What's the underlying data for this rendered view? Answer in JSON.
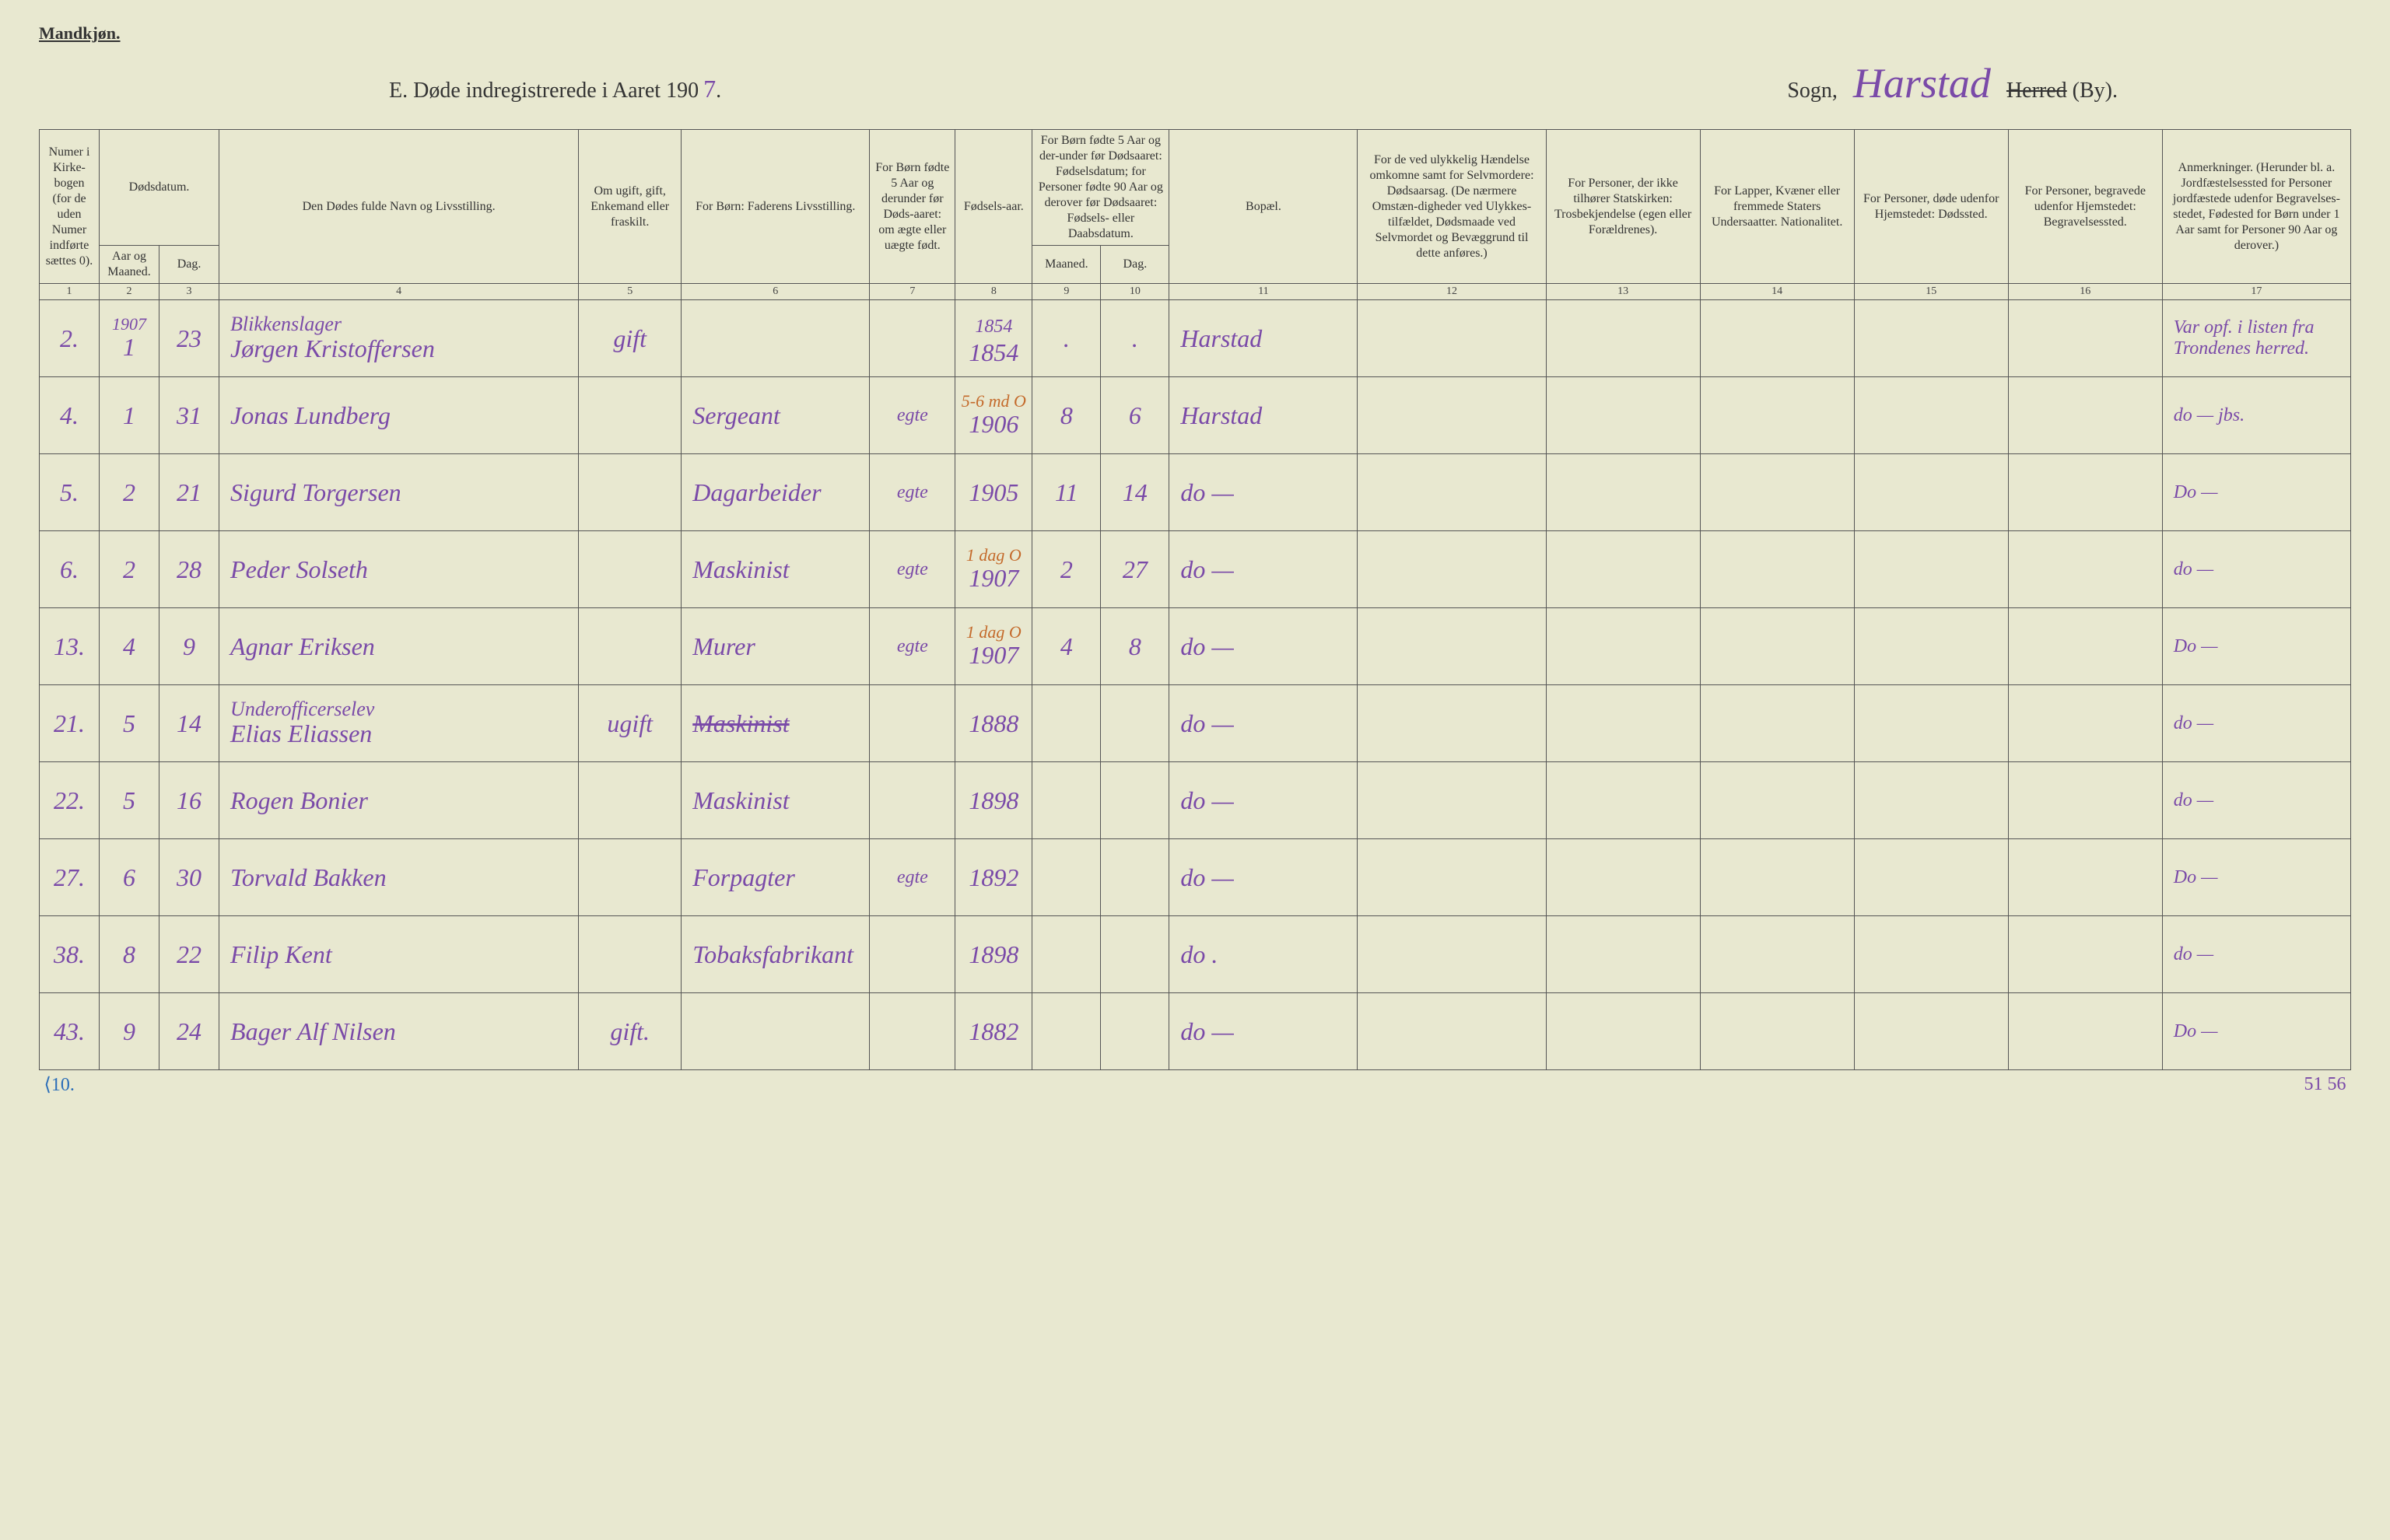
{
  "header": {
    "gender_label": "Mandkjøn.",
    "title_prefix": "E.  Døde indregistrerede i Aaret 190",
    "year_suffix": "7",
    "title_period": ".",
    "sogn_label": "Sogn,",
    "sogn_name": "Harstad",
    "herred_strike": "Herred",
    "by_suffix": "(By)."
  },
  "columns": {
    "c1": "Numer i Kirke-bogen (for de uden Numer indførte sættes 0).",
    "c23_top": "Dødsdatum.",
    "c2": "Aar og Maaned.",
    "c3": "Dag.",
    "c4": "Den Dødes fulde Navn og Livsstilling.",
    "c5": "Om ugift, gift, Enkemand eller fraskilt.",
    "c6": "For Børn: Faderens Livsstilling.",
    "c7": "For Børn fødte 5 Aar og derunder før Døds-aaret: om ægte eller uægte født.",
    "c8": "Fødsels-aar.",
    "c910_top": "For Børn fødte 5 Aar og der-under før Dødsaaret: Fødselsdatum; for Personer fødte 90 Aar og derover før Dødsaaret: Fødsels- eller Daabsdatum.",
    "c9": "Maaned.",
    "c10": "Dag.",
    "c11": "Bopæl.",
    "c12": "For de ved ulykkelig Hændelse omkomne samt for Selvmordere: Dødsaarsag. (De nærmere Omstæn-digheder ved Ulykkes-tilfældet, Dødsmaade ved Selvmordet og Bevæggrund til dette anføres.)",
    "c13": "For Personer, der ikke tilhører Statskirken: Trosbekjendelse (egen eller Forældrenes).",
    "c14": "For Lapper, Kvæner eller fremmede Staters Undersaatter. Nationalitet.",
    "c15": "For Personer, døde udenfor Hjemstedet: Dødssted.",
    "c16": "For Personer, begravede udenfor Hjemstedet: Begravelsessted.",
    "c17": "Anmerkninger. (Herunder bl. a. Jordfæstelsessted for Personer jordfæstede udenfor Begravelses-stedet, Fødested for Børn under 1 Aar samt for Personer 90 Aar og derover.)",
    "nums": [
      "1",
      "2",
      "3",
      "4",
      "5",
      "6",
      "7",
      "8",
      "9",
      "10",
      "11",
      "12",
      "13",
      "14",
      "15",
      "16",
      "17"
    ]
  },
  "rows": [
    {
      "num": "2.",
      "year_top": "1907",
      "mon": "1",
      "day": "23",
      "name_top": "Blikkenslager",
      "name": "Jørgen Kristoffersen",
      "civ": "gift",
      "father": "",
      "egte": "",
      "birthyear_extra": "1854",
      "birthyear": "1854",
      "bm": ".",
      "bd": ".",
      "bopael": "Harstad",
      "remarks": "Var opf. i listen fra Trondenes herred."
    },
    {
      "num": "4.",
      "mon": "1",
      "day": "31",
      "name": "Jonas Lundberg",
      "civ": "",
      "father": "Sergeant",
      "egte": "egte",
      "birthyear": "1906",
      "bm": "8",
      "bd": "6",
      "annot": "5-6 md   O",
      "bopael": "Harstad",
      "remarks": "do — jbs."
    },
    {
      "num": "5.",
      "mon": "2",
      "day": "21",
      "name": "Sigurd Torgersen",
      "civ": "",
      "father": "Dagarbeider",
      "egte": "egte",
      "birthyear": "1905",
      "bm": "11",
      "bd": "14",
      "bopael": "do —",
      "remarks": "Do —"
    },
    {
      "num": "6.",
      "mon": "2",
      "day": "28",
      "name": "Peder Solseth",
      "civ": "",
      "father": "Maskinist",
      "egte": "egte",
      "birthyear": "1907",
      "bm": "2",
      "bd": "27",
      "annot": "1 dag  O",
      "bopael": "do —",
      "remarks": "do —"
    },
    {
      "num": "13.",
      "mon": "4",
      "day": "9",
      "name": "Agnar Eriksen",
      "civ": "",
      "father": "Murer",
      "egte": "egte",
      "birthyear": "1907",
      "bm": "4",
      "bd": "8",
      "annot": "1 dag  O",
      "bopael": "do —",
      "remarks": "Do —"
    },
    {
      "num": "21.",
      "mon": "5",
      "day": "14",
      "name_top": "Underofficerselev",
      "name": "Elias Eliassen",
      "civ": "ugift",
      "father": "Maskinist",
      "father_strike": true,
      "egte": "",
      "birthyear": "1888",
      "bm": "",
      "bd": "",
      "bopael": "do —",
      "remarks": "do —"
    },
    {
      "num": "22.",
      "mon": "5",
      "day": "16",
      "name": "Rogen Bonier",
      "civ": "",
      "father": "Maskinist",
      "egte": "",
      "birthyear": "1898",
      "bm": "",
      "bd": "",
      "bopael": "do —",
      "remarks": "do —"
    },
    {
      "num": "27.",
      "mon": "6",
      "day": "30",
      "name": "Torvald Bakken",
      "civ": "",
      "father": "Forpagter",
      "egte": "egte",
      "birthyear": "1892",
      "bm": "",
      "bd": "",
      "bopael": "do —",
      "remarks": "Do —"
    },
    {
      "num": "38.",
      "mon": "8",
      "day": "22",
      "name": "Filip Kent",
      "civ": "",
      "father": "Tobaksfabrikant",
      "egte": "",
      "birthyear": "1898",
      "bm": "",
      "bd": "",
      "bopael": "do .",
      "remarks": "do —"
    },
    {
      "num": "43.",
      "mon": "9",
      "day": "24",
      "name": "Bager Alf Nilsen",
      "civ": "gift.",
      "father": "",
      "egte": "",
      "birthyear": "1882",
      "bm": "",
      "bd": "",
      "bopael": "do —",
      "remarks": "Do —"
    }
  ],
  "footer": {
    "bottom_left": "⟨10.",
    "bottom_right": "51 56"
  }
}
